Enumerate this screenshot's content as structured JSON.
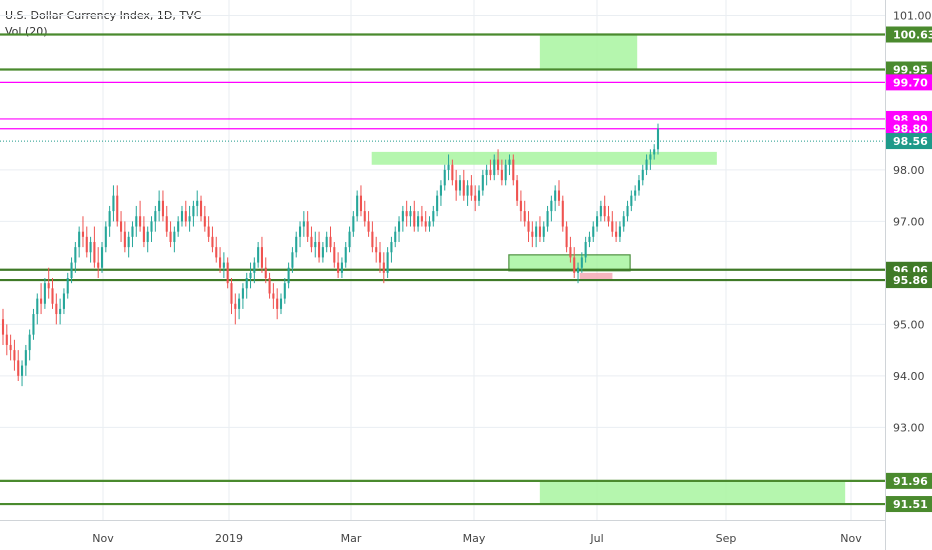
{
  "header": {
    "title": "U.S. Dollar Currency Index, 1D, TVC",
    "volume": "Vol (20)"
  },
  "chart_data": {
    "type": "candlestick",
    "ylim": [
      91.2,
      101.3
    ],
    "y_ticks": [
      "101.00",
      "98.00",
      "97.00",
      "95.00",
      "94.00",
      "93.00"
    ],
    "x_tick_labels": [
      "Nov",
      "2019",
      "Mar",
      "May",
      "Jul",
      "Sep",
      "Nov"
    ],
    "grid": true,
    "price_levels": [
      {
        "value": 100.63,
        "label": "100.63",
        "color": "#4a8a2e"
      },
      {
        "value": 99.95,
        "label": "99.95",
        "color": "#4a8a2e"
      },
      {
        "value": 99.7,
        "label": "99.70",
        "color": "#ff00ff"
      },
      {
        "value": 98.99,
        "label": "98.99",
        "color": "#ff00ff"
      },
      {
        "value": 98.8,
        "label": "98.80",
        "color": "#ff00ff"
      },
      {
        "value": 98.56,
        "label": "98.56",
        "color": "#1e9a8a"
      },
      {
        "value": 96.06,
        "label": "96.06",
        "color": "#3f7a27"
      },
      {
        "value": 95.86,
        "label": "95.86",
        "color": "#3f7a27"
      },
      {
        "value": 91.96,
        "label": "91.96",
        "color": "#4a8a2e"
      },
      {
        "value": 91.51,
        "label": "91.51",
        "color": "#4a8a2e"
      }
    ],
    "candles": [
      [
        95.1,
        95.3,
        94.6,
        94.8
      ],
      [
        94.8,
        95.0,
        94.4,
        94.6
      ],
      [
        94.6,
        94.8,
        94.3,
        94.5
      ],
      [
        94.5,
        94.7,
        94.1,
        94.3
      ],
      [
        94.3,
        94.5,
        93.9,
        94.0
      ],
      [
        94.0,
        94.3,
        93.8,
        94.2
      ],
      [
        94.2,
        94.6,
        94.0,
        94.5
      ],
      [
        94.5,
        94.9,
        94.3,
        94.8
      ],
      [
        94.8,
        95.3,
        94.7,
        95.2
      ],
      [
        95.2,
        95.6,
        95.0,
        95.5
      ],
      [
        95.5,
        95.8,
        95.2,
        95.4
      ],
      [
        95.4,
        95.9,
        95.3,
        95.8
      ],
      [
        95.8,
        96.1,
        95.5,
        95.7
      ],
      [
        95.7,
        95.9,
        95.3,
        95.4
      ],
      [
        95.4,
        95.6,
        95.0,
        95.2
      ],
      [
        95.2,
        95.5,
        95.0,
        95.3
      ],
      [
        95.3,
        95.7,
        95.2,
        95.6
      ],
      [
        95.6,
        96.0,
        95.5,
        95.9
      ],
      [
        95.9,
        96.3,
        95.8,
        96.2
      ],
      [
        96.2,
        96.6,
        96.0,
        96.5
      ],
      [
        96.5,
        96.9,
        96.3,
        96.8
      ],
      [
        96.8,
        97.1,
        96.5,
        96.7
      ],
      [
        96.7,
        96.9,
        96.3,
        96.4
      ],
      [
        96.4,
        96.7,
        96.2,
        96.6
      ],
      [
        96.6,
        96.9,
        96.1,
        96.2
      ],
      [
        96.2,
        96.5,
        95.9,
        96.1
      ],
      [
        96.1,
        96.6,
        96.0,
        96.5
      ],
      [
        96.5,
        97.0,
        96.4,
        96.9
      ],
      [
        96.9,
        97.3,
        96.7,
        97.2
      ],
      [
        97.2,
        97.7,
        97.0,
        97.5
      ],
      [
        97.5,
        97.7,
        96.9,
        97.0
      ],
      [
        97.0,
        97.2,
        96.6,
        96.8
      ],
      [
        96.8,
        97.0,
        96.4,
        96.5
      ],
      [
        96.5,
        96.8,
        96.3,
        96.7
      ],
      [
        96.7,
        97.0,
        96.5,
        96.9
      ],
      [
        96.9,
        97.3,
        96.7,
        97.1
      ],
      [
        97.1,
        97.4,
        96.8,
        96.9
      ],
      [
        96.9,
        97.1,
        96.5,
        96.6
      ],
      [
        96.6,
        96.9,
        96.4,
        96.8
      ],
      [
        96.8,
        97.1,
        96.6,
        97.0
      ],
      [
        97.0,
        97.3,
        96.8,
        97.2
      ],
      [
        97.2,
        97.6,
        97.0,
        97.4
      ],
      [
        97.4,
        97.6,
        97.0,
        97.1
      ],
      [
        97.1,
        97.3,
        96.7,
        96.8
      ],
      [
        96.8,
        97.0,
        96.5,
        96.6
      ],
      [
        96.6,
        96.9,
        96.4,
        96.8
      ],
      [
        96.8,
        97.1,
        96.7,
        97.0
      ],
      [
        97.0,
        97.3,
        96.9,
        97.2
      ],
      [
        97.2,
        97.4,
        96.9,
        97.0
      ],
      [
        97.0,
        97.3,
        96.8,
        97.1
      ],
      [
        97.1,
        97.4,
        96.9,
        97.3
      ],
      [
        97.3,
        97.6,
        97.1,
        97.4
      ],
      [
        97.4,
        97.5,
        97.0,
        97.1
      ],
      [
        97.1,
        97.3,
        96.8,
        96.9
      ],
      [
        96.9,
        97.1,
        96.6,
        96.7
      ],
      [
        96.7,
        96.9,
        96.4,
        96.5
      ],
      [
        96.5,
        96.7,
        96.2,
        96.3
      ],
      [
        96.3,
        96.5,
        96.0,
        96.1
      ],
      [
        96.1,
        96.4,
        95.9,
        96.2
      ],
      [
        96.2,
        96.3,
        95.7,
        95.8
      ],
      [
        95.8,
        95.9,
        95.2,
        95.4
      ],
      [
        95.4,
        95.6,
        95.0,
        95.3
      ],
      [
        95.3,
        95.6,
        95.1,
        95.5
      ],
      [
        95.5,
        95.8,
        95.3,
        95.7
      ],
      [
        95.7,
        96.0,
        95.5,
        95.9
      ],
      [
        95.9,
        96.2,
        95.7,
        96.0
      ],
      [
        96.0,
        96.3,
        95.8,
        96.2
      ],
      [
        96.2,
        96.6,
        96.1,
        96.5
      ],
      [
        96.5,
        96.7,
        96.0,
        96.1
      ],
      [
        96.1,
        96.3,
        95.8,
        95.9
      ],
      [
        95.9,
        96.0,
        95.5,
        95.6
      ],
      [
        95.6,
        95.8,
        95.3,
        95.5
      ],
      [
        95.5,
        95.7,
        95.1,
        95.3
      ],
      [
        95.3,
        95.6,
        95.2,
        95.5
      ],
      [
        95.5,
        95.9,
        95.4,
        95.8
      ],
      [
        95.8,
        96.2,
        95.7,
        96.1
      ],
      [
        96.1,
        96.5,
        96.0,
        96.4
      ],
      [
        96.4,
        96.8,
        96.3,
        96.7
      ],
      [
        96.7,
        97.0,
        96.5,
        96.9
      ],
      [
        96.9,
        97.2,
        96.7,
        97.0
      ],
      [
        97.0,
        97.2,
        96.6,
        96.7
      ],
      [
        96.7,
        96.9,
        96.4,
        96.5
      ],
      [
        96.5,
        96.8,
        96.3,
        96.6
      ],
      [
        96.6,
        96.8,
        96.2,
        96.3
      ],
      [
        96.3,
        96.6,
        96.2,
        96.5
      ],
      [
        96.5,
        96.8,
        96.4,
        96.7
      ],
      [
        96.7,
        96.9,
        96.4,
        96.5
      ],
      [
        96.5,
        96.6,
        96.1,
        96.2
      ],
      [
        96.2,
        96.4,
        95.9,
        96.0
      ],
      [
        96.0,
        96.3,
        95.9,
        96.2
      ],
      [
        96.2,
        96.6,
        96.1,
        96.5
      ],
      [
        96.5,
        96.9,
        96.4,
        96.8
      ],
      [
        96.8,
        97.2,
        96.7,
        97.1
      ],
      [
        97.1,
        97.6,
        97.0,
        97.5
      ],
      [
        97.5,
        97.7,
        97.1,
        97.2
      ],
      [
        97.2,
        97.4,
        96.9,
        97.0
      ],
      [
        97.0,
        97.2,
        96.7,
        96.8
      ],
      [
        96.8,
        97.0,
        96.4,
        96.5
      ],
      [
        96.5,
        96.7,
        96.2,
        96.4
      ],
      [
        96.4,
        96.6,
        96.0,
        96.2
      ],
      [
        96.2,
        96.4,
        95.8,
        96.0
      ],
      [
        96.0,
        96.5,
        95.9,
        96.4
      ],
      [
        96.4,
        96.7,
        96.2,
        96.6
      ],
      [
        96.6,
        96.9,
        96.5,
        96.8
      ],
      [
        96.8,
        97.1,
        96.6,
        97.0
      ],
      [
        97.0,
        97.3,
        96.8,
        97.2
      ],
      [
        97.2,
        97.4,
        96.9,
        97.1
      ],
      [
        97.1,
        97.3,
        96.9,
        97.2
      ],
      [
        97.2,
        97.4,
        96.8,
        96.9
      ],
      [
        96.9,
        97.2,
        96.8,
        97.1
      ],
      [
        97.1,
        97.3,
        96.9,
        97.0
      ],
      [
        97.0,
        97.2,
        96.8,
        96.9
      ],
      [
        96.9,
        97.1,
        96.8,
        97.0
      ],
      [
        97.0,
        97.3,
        96.9,
        97.2
      ],
      [
        97.2,
        97.6,
        97.1,
        97.5
      ],
      [
        97.5,
        97.8,
        97.3,
        97.7
      ],
      [
        97.7,
        98.1,
        97.6,
        98.0
      ],
      [
        98.0,
        98.3,
        97.8,
        98.1
      ],
      [
        98.1,
        98.2,
        97.7,
        97.8
      ],
      [
        97.8,
        98.0,
        97.4,
        97.6
      ],
      [
        97.6,
        97.9,
        97.5,
        97.8
      ],
      [
        97.8,
        98.0,
        97.4,
        97.5
      ],
      [
        97.5,
        97.8,
        97.3,
        97.7
      ],
      [
        97.7,
        97.9,
        97.4,
        97.5
      ],
      [
        97.5,
        97.7,
        97.2,
        97.4
      ],
      [
        97.4,
        97.7,
        97.3,
        97.6
      ],
      [
        97.6,
        98.0,
        97.5,
        97.9
      ],
      [
        97.9,
        98.1,
        97.7,
        98.0
      ],
      [
        98.0,
        98.2,
        97.8,
        97.9
      ],
      [
        97.9,
        98.3,
        97.8,
        98.2
      ],
      [
        98.2,
        98.4,
        97.9,
        98.0
      ],
      [
        98.0,
        98.2,
        97.7,
        97.8
      ],
      [
        97.8,
        98.2,
        97.7,
        98.1
      ],
      [
        98.1,
        98.3,
        97.9,
        98.2
      ],
      [
        98.2,
        98.3,
        97.7,
        97.8
      ],
      [
        97.8,
        97.9,
        97.3,
        97.4
      ],
      [
        97.4,
        97.6,
        97.0,
        97.2
      ],
      [
        97.2,
        97.4,
        96.9,
        97.0
      ],
      [
        97.0,
        97.2,
        96.6,
        96.8
      ],
      [
        96.8,
        97.0,
        96.5,
        96.7
      ],
      [
        96.7,
        97.0,
        96.5,
        96.9
      ],
      [
        96.9,
        97.1,
        96.6,
        96.7
      ],
      [
        96.7,
        97.0,
        96.6,
        96.9
      ],
      [
        96.9,
        97.3,
        96.8,
        97.2
      ],
      [
        97.2,
        97.5,
        97.0,
        97.4
      ],
      [
        97.4,
        97.7,
        97.2,
        97.6
      ],
      [
        97.6,
        97.8,
        97.3,
        97.4
      ],
      [
        97.4,
        97.5,
        96.8,
        96.9
      ],
      [
        96.9,
        97.0,
        96.4,
        96.5
      ],
      [
        96.5,
        96.7,
        96.2,
        96.3
      ],
      [
        96.3,
        96.5,
        95.9,
        96.0
      ],
      [
        96.0,
        96.2,
        95.8,
        96.1
      ],
      [
        96.1,
        96.4,
        96.0,
        96.3
      ],
      [
        96.3,
        96.7,
        96.2,
        96.6
      ],
      [
        96.6,
        96.8,
        96.5,
        96.7
      ],
      [
        96.7,
        97.0,
        96.6,
        96.9
      ],
      [
        96.9,
        97.2,
        96.8,
        97.1
      ],
      [
        97.1,
        97.4,
        97.0,
        97.3
      ],
      [
        97.3,
        97.5,
        97.0,
        97.1
      ],
      [
        97.1,
        97.3,
        96.9,
        97.0
      ],
      [
        97.0,
        97.2,
        96.7,
        96.8
      ],
      [
        96.8,
        97.0,
        96.6,
        96.7
      ],
      [
        96.7,
        97.0,
        96.6,
        96.9
      ],
      [
        96.9,
        97.2,
        96.8,
        97.1
      ],
      [
        97.1,
        97.4,
        97.0,
        97.3
      ],
      [
        97.3,
        97.6,
        97.2,
        97.5
      ],
      [
        97.5,
        97.7,
        97.4,
        97.6
      ],
      [
        97.6,
        97.9,
        97.5,
        97.8
      ],
      [
        97.8,
        98.1,
        97.7,
        98.0
      ],
      [
        98.0,
        98.3,
        97.9,
        98.2
      ],
      [
        98.2,
        98.4,
        98.0,
        98.3
      ],
      [
        98.3,
        98.5,
        98.2,
        98.4
      ],
      [
        98.4,
        98.9,
        98.3,
        98.8
      ]
    ]
  },
  "overlays": {
    "zones": [
      {
        "x0": 0.61,
        "x1": 0.72,
        "y0": 100.63,
        "y1": 99.95,
        "fill": "#a8f5a0",
        "stroke": ""
      },
      {
        "x0": 0.42,
        "x1": 0.81,
        "y0": 98.35,
        "y1": 98.1,
        "fill": "#a8f5a0",
        "stroke": ""
      },
      {
        "x0": 0.575,
        "x1": 0.712,
        "y0": 96.35,
        "y1": 96.04,
        "fill": "#a8f5a0",
        "stroke": "#2f7d1f"
      },
      {
        "x0": 0.655,
        "x1": 0.692,
        "y0": 96.0,
        "y1": 95.86,
        "fill": "#f4a9b4",
        "stroke": ""
      },
      {
        "x0": 0.61,
        "x1": 0.955,
        "y0": 91.96,
        "y1": 91.51,
        "fill": "#a8f5a0",
        "stroke": ""
      }
    ],
    "colors": {
      "up": "#26a69a",
      "down": "#ef5350",
      "grid": "#eaeef2",
      "axis_text": "#444444"
    }
  }
}
